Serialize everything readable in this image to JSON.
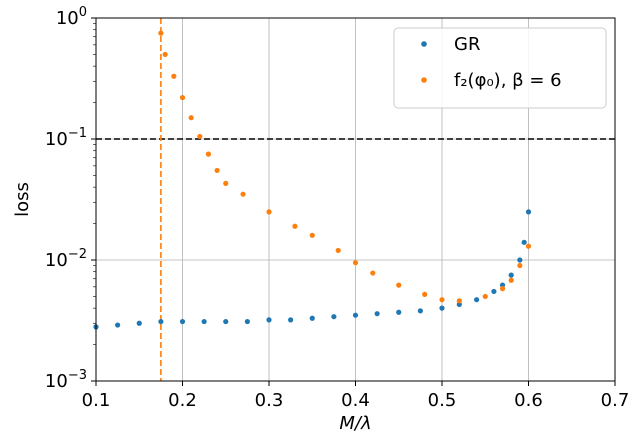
{
  "chart_data": {
    "type": "scatter",
    "xlabel": "M/λ",
    "ylabel": "loss",
    "xlim": [
      0.1,
      0.7
    ],
    "ylim": [
      0.001,
      1
    ],
    "yscale": "log",
    "grid": true,
    "legend_position": "top-right",
    "x_ticks": [
      "0.1",
      "0.2",
      "0.3",
      "0.4",
      "0.5",
      "0.6",
      "0.7"
    ],
    "y_ticks": [
      {
        "value": 1,
        "base": "10",
        "exp": "0"
      },
      {
        "value": 0.1,
        "base": "10",
        "exp": "−1"
      },
      {
        "value": 0.01,
        "base": "10",
        "exp": "−2"
      },
      {
        "value": 0.001,
        "base": "10",
        "exp": "−3"
      }
    ],
    "reference_lines": [
      {
        "orientation": "horizontal",
        "value": 0.1,
        "style": "dashed",
        "color": "#000000"
      },
      {
        "orientation": "vertical",
        "value": 0.175,
        "style": "dashed",
        "color": "#ff7f0e"
      }
    ],
    "series": [
      {
        "name": "GR",
        "color": "#1f77b4",
        "x": [
          0.1,
          0.125,
          0.15,
          0.175,
          0.2,
          0.225,
          0.25,
          0.275,
          0.3,
          0.325,
          0.35,
          0.375,
          0.4,
          0.425,
          0.45,
          0.475,
          0.5,
          0.52,
          0.54,
          0.56,
          0.57,
          0.58,
          0.59,
          0.595,
          0.6
        ],
        "y": [
          0.0028,
          0.0029,
          0.003,
          0.0031,
          0.0031,
          0.0031,
          0.0031,
          0.0031,
          0.0032,
          0.0032,
          0.0033,
          0.0034,
          0.0035,
          0.0036,
          0.0037,
          0.0038,
          0.004,
          0.0043,
          0.0047,
          0.0055,
          0.0062,
          0.0075,
          0.01,
          0.014,
          0.025
        ]
      },
      {
        "name": "f₂(φ₀), β = 6",
        "color": "#ff7f0e",
        "x": [
          0.175,
          0.18,
          0.19,
          0.2,
          0.21,
          0.22,
          0.23,
          0.24,
          0.25,
          0.27,
          0.3,
          0.33,
          0.35,
          0.38,
          0.4,
          0.42,
          0.45,
          0.48,
          0.5,
          0.52,
          0.55,
          0.57,
          0.58,
          0.59,
          0.6
        ],
        "y": [
          0.75,
          0.5,
          0.33,
          0.22,
          0.15,
          0.105,
          0.075,
          0.055,
          0.043,
          0.035,
          0.025,
          0.019,
          0.016,
          0.012,
          0.0095,
          0.0078,
          0.0062,
          0.0052,
          0.0047,
          0.0046,
          0.005,
          0.0058,
          0.0068,
          0.009,
          0.013
        ]
      }
    ]
  }
}
